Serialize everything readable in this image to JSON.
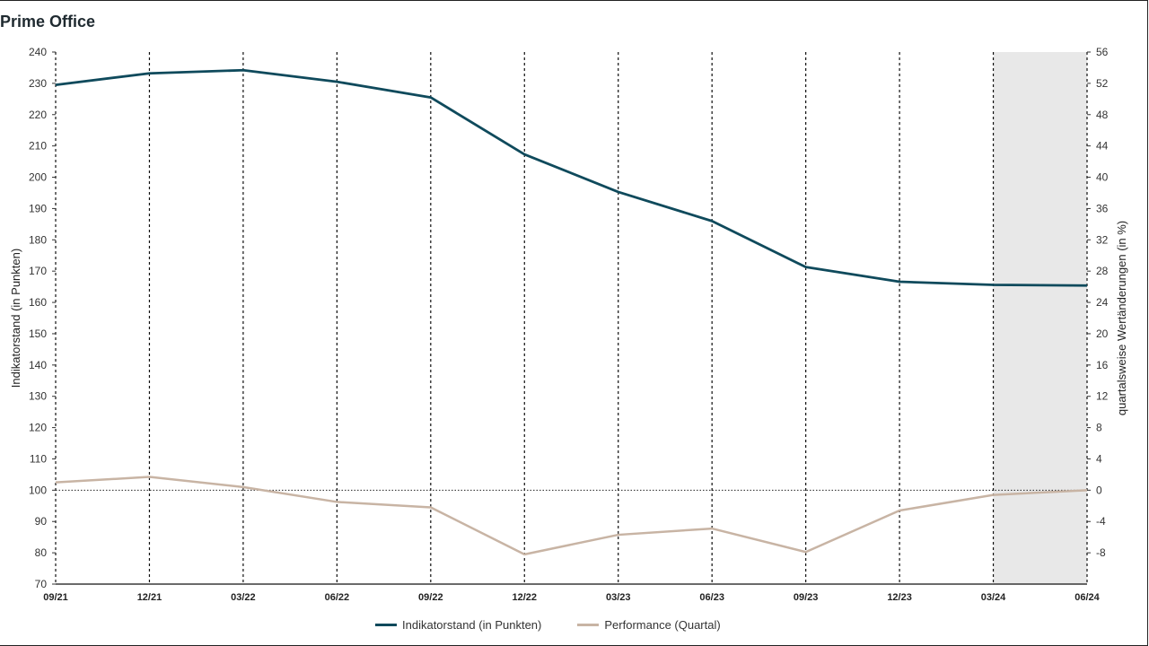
{
  "title": "Prime Office",
  "colors": {
    "index_line": "#0f4a5c",
    "performance_line": "#c8b4a4",
    "highlight": "#e8e8e8"
  },
  "chart_data": {
    "type": "line",
    "categories": [
      "09/21",
      "12/21",
      "03/22",
      "06/22",
      "09/22",
      "12/22",
      "03/23",
      "06/23",
      "09/23",
      "12/23",
      "03/24",
      "06/24"
    ],
    "ylabel": "Indikatorstand (in Punkten)",
    "y2label": "quartalsweise Wertänderungen (in %)",
    "ylim": [
      70,
      240
    ],
    "y_ticks": [
      70,
      80,
      90,
      100,
      110,
      120,
      130,
      140,
      150,
      160,
      170,
      180,
      190,
      200,
      210,
      220,
      230,
      240
    ],
    "y2lim": [
      -12,
      56
    ],
    "y2_ticks": [
      -8,
      -4,
      0,
      4,
      8,
      12,
      16,
      20,
      24,
      28,
      32,
      36,
      40,
      44,
      48,
      52,
      56
    ],
    "reference_line_y": 100,
    "highlight_range": [
      "03/24",
      "06/24"
    ],
    "grid": "vertical dashed at each category",
    "legend_position": "bottom-center",
    "series": [
      {
        "name": "Indikatorstand (in Punkten)",
        "axis": "left",
        "values": [
          229.5,
          233.2,
          234.2,
          230.5,
          225.5,
          207.3,
          195.3,
          186.0,
          171.3,
          166.6,
          165.6,
          165.4
        ]
      },
      {
        "name": "Performance (Quartal)",
        "axis": "right",
        "values": [
          1.0,
          1.7,
          0.4,
          -1.5,
          -2.2,
          -8.2,
          -5.7,
          -4.9,
          -7.9,
          -2.6,
          -0.6,
          0.0
        ]
      }
    ]
  }
}
